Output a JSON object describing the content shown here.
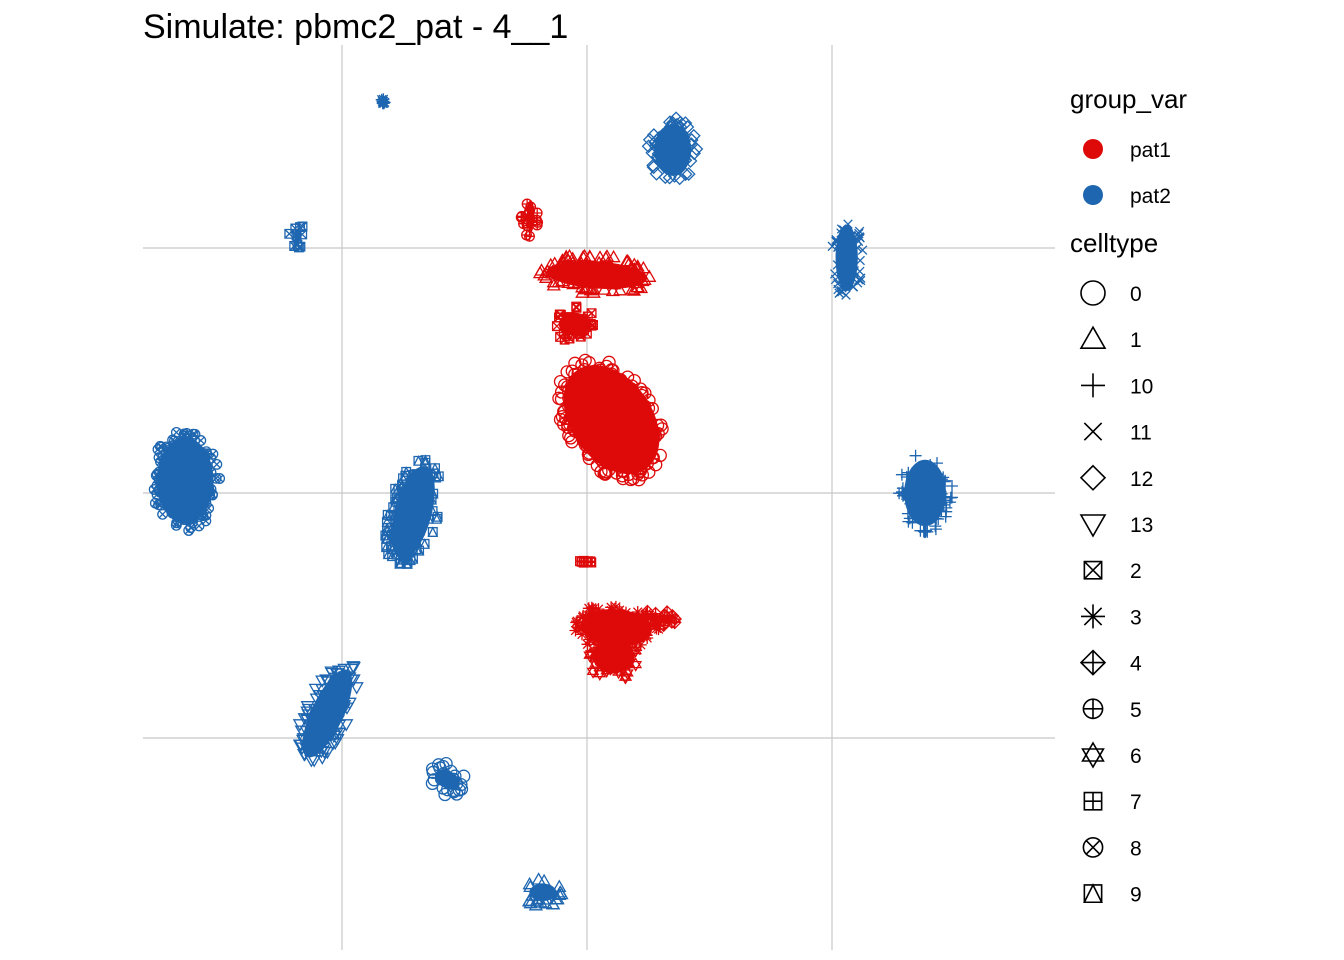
{
  "chart_data": {
    "type": "scatter",
    "title": "Simulate: pbmc2_pat - 4__1",
    "xlabel": "",
    "ylabel": "",
    "grid": true,
    "legend_position": "right",
    "legends": [
      {
        "title": "group_var",
        "kind": "color",
        "entries": [
          {
            "label": "pat1",
            "color": "#DE0A0A"
          },
          {
            "label": "pat2",
            "color": "#1E66B0"
          }
        ]
      },
      {
        "title": "celltype",
        "kind": "shape",
        "entries": [
          {
            "label": "0",
            "shape": "circle"
          },
          {
            "label": "1",
            "shape": "triangle"
          },
          {
            "label": "10",
            "shape": "plus"
          },
          {
            "label": "11",
            "shape": "cross"
          },
          {
            "label": "12",
            "shape": "diamond"
          },
          {
            "label": "13",
            "shape": "triangle-down"
          },
          {
            "label": "2",
            "shape": "square-cross"
          },
          {
            "label": "3",
            "shape": "asterisk"
          },
          {
            "label": "4",
            "shape": "diamond-plus"
          },
          {
            "label": "5",
            "shape": "circle-plus"
          },
          {
            "label": "6",
            "shape": "star-of-david"
          },
          {
            "label": "7",
            "shape": "square-plus"
          },
          {
            "label": "8",
            "shape": "circle-cross"
          },
          {
            "label": "9",
            "shape": "square-triangle"
          }
        ]
      }
    ],
    "clusters": [
      {
        "group": "pat1",
        "celltype": "0",
        "cx": 0.1,
        "cy": 0.3,
        "rx": 0.19,
        "ry": 0.27,
        "rotate": 35
      },
      {
        "group": "pat1",
        "celltype": "1",
        "cx": 0.04,
        "cy": 0.89,
        "rx": 0.23,
        "ry": 0.08,
        "rotate": -4
      },
      {
        "group": "pat1",
        "celltype": "2",
        "cx": -0.05,
        "cy": 0.69,
        "rx": 0.09,
        "ry": 0.07,
        "rotate": 0
      },
      {
        "group": "pat1",
        "celltype": "3",
        "cx": 0.12,
        "cy": -0.55,
        "rx": 0.17,
        "ry": 0.1,
        "rotate": -5
      },
      {
        "group": "pat1",
        "celltype": "4",
        "cx": 0.28,
        "cy": -0.51,
        "rx": 0.09,
        "ry": 0.04,
        "rotate": -10
      },
      {
        "group": "pat1",
        "celltype": "5",
        "cx": -0.23,
        "cy": 1.13,
        "rx": 0.04,
        "ry": 0.09,
        "rotate": 0
      },
      {
        "group": "pat1",
        "celltype": "6",
        "cx": 0.11,
        "cy": -0.67,
        "rx": 0.11,
        "ry": 0.09,
        "rotate": 0
      },
      {
        "group": "pat1",
        "celltype": "7",
        "cx": 0.0,
        "cy": -0.28,
        "rx": 0.03,
        "ry": 0.01,
        "rotate": 0
      },
      {
        "group": "pat2",
        "celltype": "8",
        "cx": -1.64,
        "cy": 0.05,
        "rx": 0.14,
        "ry": 0.2,
        "rotate": 0
      },
      {
        "group": "pat2",
        "celltype": "9",
        "cx": -0.71,
        "cy": -0.08,
        "rx": 0.1,
        "ry": 0.22,
        "rotate": -15
      },
      {
        "group": "pat2",
        "celltype": "10",
        "cx": 1.38,
        "cy": 0.0,
        "rx": 0.11,
        "ry": 0.16,
        "rotate": 0
      },
      {
        "group": "pat2",
        "celltype": "11",
        "cx": 1.06,
        "cy": 0.96,
        "rx": 0.07,
        "ry": 0.16,
        "rotate": 0
      },
      {
        "group": "pat2",
        "celltype": "12",
        "cx": 0.35,
        "cy": 1.4,
        "rx": 0.1,
        "ry": 0.13,
        "rotate": 0
      },
      {
        "group": "pat2",
        "celltype": "13",
        "cx": -1.06,
        "cy": -0.9,
        "rx": 0.09,
        "ry": 0.22,
        "rotate": -25
      },
      {
        "group": "pat2",
        "celltype": "0",
        "cx": -0.57,
        "cy": -1.17,
        "rx": 0.08,
        "ry": 0.06,
        "rotate": -30
      },
      {
        "group": "pat2",
        "celltype": "1",
        "cx": -0.18,
        "cy": -1.63,
        "rx": 0.08,
        "ry": 0.06,
        "rotate": 0
      },
      {
        "group": "pat2",
        "celltype": "2",
        "cx": -1.18,
        "cy": 1.05,
        "rx": 0.04,
        "ry": 0.05,
        "rotate": 0
      },
      {
        "group": "pat2",
        "celltype": "3",
        "cx": -0.83,
        "cy": 1.6,
        "rx": 0.01,
        "ry": 0.01,
        "rotate": 0
      }
    ]
  }
}
